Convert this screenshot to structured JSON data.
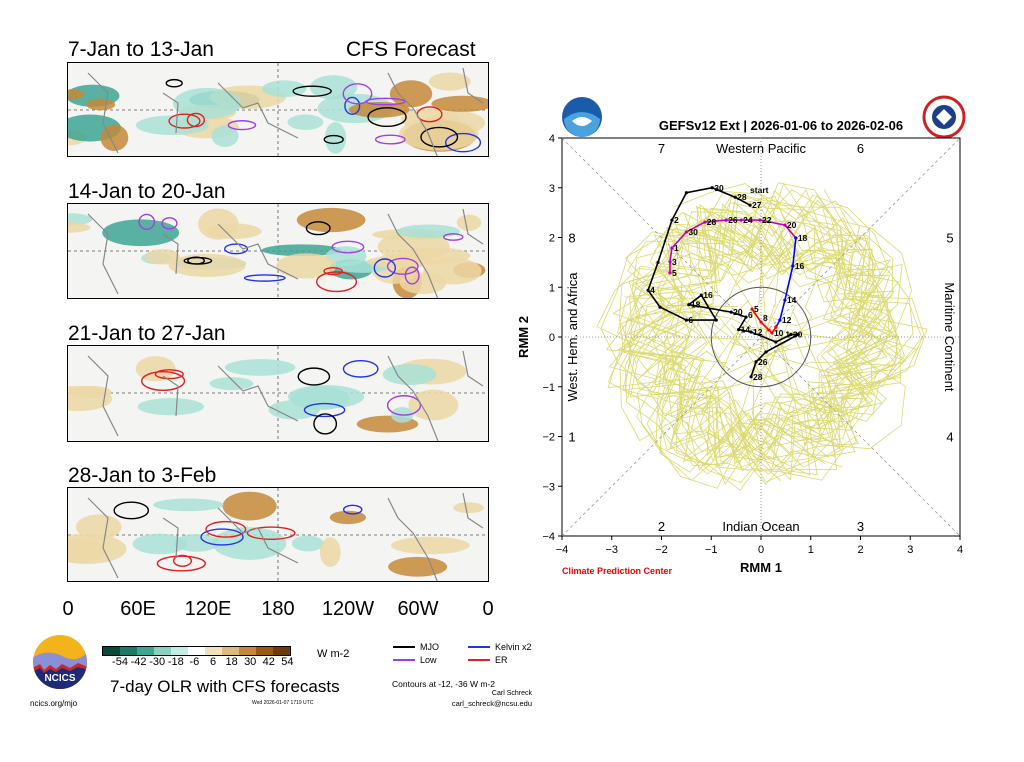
{
  "left_panel": {
    "header_title": "CFS Forecast",
    "panels": [
      {
        "title": "7-Jan to 13-Jan"
      },
      {
        "title": "14-Jan to 20-Jan"
      },
      {
        "title": "21-Jan to 27-Jan"
      },
      {
        "title": "28-Jan to 3-Feb"
      }
    ],
    "x_ticks": [
      "0",
      "60E",
      "120E",
      "180",
      "120W",
      "60W",
      "0"
    ],
    "colorbar": {
      "colors": [
        "#0b4a3a",
        "#1a7a68",
        "#3da595",
        "#86d0c4",
        "#c4ece4",
        "#ffffff",
        "#f3e2b8",
        "#ddbb7a",
        "#c48a3a",
        "#9b5a14",
        "#6e3a06"
      ],
      "labels": [
        "-54",
        "-42",
        "-30",
        "-18",
        "-6",
        "6",
        "18",
        "30",
        "42",
        "54"
      ],
      "units": "W m-2"
    },
    "title": "7-day OLR with CFS forecasts",
    "timestamp": "Wed 2026-01-07 1719 UTC",
    "site": "ncics.org/mjo",
    "logo_text": "NCICS",
    "legend": [
      {
        "name": "MJO",
        "color": "#000000"
      },
      {
        "name": "Kelvin x2",
        "color": "#2233ee"
      },
      {
        "name": "Low",
        "color": "#a040e0"
      },
      {
        "name": "ER",
        "color": "#e02020"
      }
    ],
    "contours_note": "Contours at -12, -36 W m-2",
    "author": "Carl Schreck",
    "email": "carl_schreck@ncsu.edu"
  },
  "chart_data": {
    "type": "line",
    "title": "GEFSv12 Ext | 2026-01-06 to 2026-02-06",
    "xlabel": "RMM 1",
    "ylabel": "RMM 2",
    "xlim": [
      -4,
      4
    ],
    "ylim": [
      -4,
      4
    ],
    "x_ticks": [
      "−4",
      "−3",
      "−2",
      "−1",
      "0",
      "1",
      "2",
      "3",
      "4"
    ],
    "y_ticks": [
      "−4",
      "−3",
      "−2",
      "−1",
      "0",
      "1",
      "2",
      "3",
      "4"
    ],
    "phases": [
      "1",
      "2",
      "3",
      "4",
      "5",
      "6",
      "7",
      "8"
    ],
    "regions": {
      "top": "Western Pacific",
      "bottom": "Indian Ocean",
      "left": "West. Hem. and Africa",
      "right": "Maritime Continent"
    },
    "credit": "Climate Prediction Center",
    "start_label": "start",
    "series": [
      {
        "color": "#000000",
        "points": [
          [
            -0.22,
            2.65,
            "27"
          ],
          [
            -0.52,
            2.81,
            "28"
          ],
          [
            -0.98,
            3.0,
            "30"
          ],
          [
            -1.5,
            2.9,
            ""
          ],
          [
            -1.79,
            2.35,
            "2"
          ],
          [
            -2.07,
            1.5,
            ""
          ],
          [
            -2.27,
            0.94,
            "4"
          ],
          [
            -2.03,
            0.6,
            ""
          ],
          [
            -1.5,
            0.34,
            "6"
          ],
          [
            -0.9,
            0.34,
            ""
          ],
          [
            -1.2,
            0.84,
            "16"
          ],
          [
            -1.45,
            0.65,
            "18"
          ],
          [
            -0.6,
            0.5,
            "20"
          ],
          [
            -0.3,
            0.4,
            ""
          ],
          [
            -0.45,
            0.15,
            "14"
          ],
          [
            -0.2,
            0.1,
            "12"
          ],
          [
            0.3,
            -0.1,
            ""
          ],
          [
            0.6,
            0.05,
            "30"
          ],
          [
            0.75,
            0.05,
            "1"
          ],
          [
            0.1,
            -0.3,
            ""
          ],
          [
            -0.1,
            -0.5,
            "26"
          ],
          [
            -0.2,
            -0.8,
            "28"
          ]
        ]
      },
      {
        "color": "#c000c0",
        "points": [
          [
            -1.83,
            1.29,
            "5"
          ],
          [
            -1.83,
            1.51,
            "3"
          ],
          [
            -1.79,
            1.79,
            "1"
          ],
          [
            -1.5,
            2.11,
            "30"
          ],
          [
            -1.13,
            2.31,
            "28"
          ],
          [
            -0.7,
            2.35,
            "26"
          ],
          [
            -0.4,
            2.35,
            "24"
          ],
          [
            -0.02,
            2.35,
            "22"
          ],
          [
            0.48,
            2.25,
            "20"
          ],
          [
            0.7,
            1.99,
            "18"
          ]
        ]
      },
      {
        "color": "#0000ff",
        "points": [
          [
            0.7,
            1.99,
            ""
          ],
          [
            0.64,
            1.43,
            "16"
          ],
          [
            0.48,
            0.74,
            "14"
          ],
          [
            0.38,
            0.34,
            "12"
          ],
          [
            0.3,
            0.2,
            ""
          ]
        ]
      },
      {
        "color": "#ff0000",
        "points": [
          [
            0.3,
            0.2,
            ""
          ],
          [
            0.22,
            0.08,
            "10"
          ],
          [
            0.16,
            0.14,
            "8"
          ],
          [
            0.0,
            0.3,
            "6"
          ],
          [
            -0.18,
            0.56,
            "5"
          ]
        ]
      }
    ]
  }
}
